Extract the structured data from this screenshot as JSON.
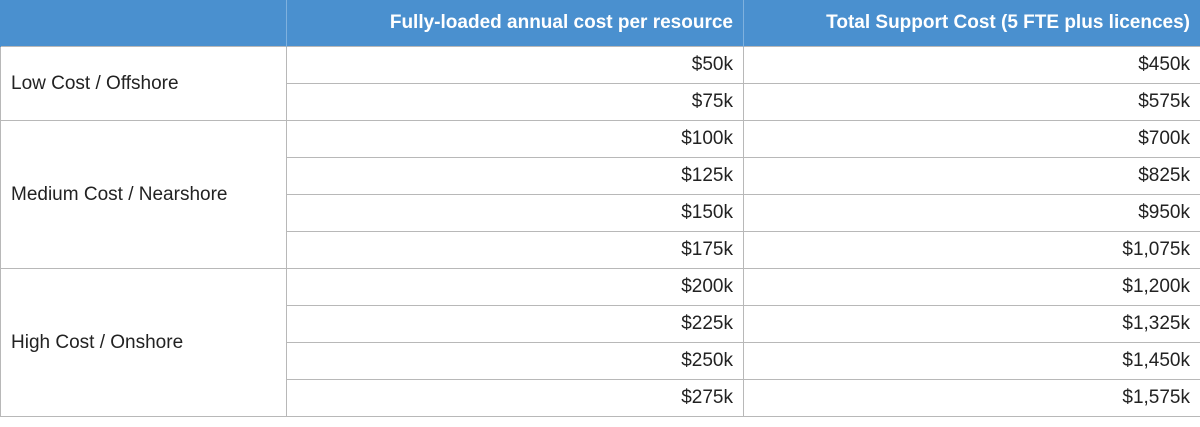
{
  "header": {
    "col1": "",
    "col2": "Fully-loaded annual cost per resource",
    "col3": "Total Support Cost (5 FTE plus licences)"
  },
  "groups": [
    {
      "label": "Low Cost / Offshore",
      "rows": [
        {
          "cost": "$50k",
          "total": "$450k"
        },
        {
          "cost": "$75k",
          "total": "$575k"
        }
      ]
    },
    {
      "label": "Medium Cost / Nearshore",
      "rows": [
        {
          "cost": "$100k",
          "total": "$700k"
        },
        {
          "cost": "$125k",
          "total": "$825k"
        },
        {
          "cost": "$150k",
          "total": "$950k"
        },
        {
          "cost": "$175k",
          "total": "$1,075k"
        }
      ]
    },
    {
      "label": "High Cost / Onshore",
      "rows": [
        {
          "cost": "$200k",
          "total": "$1,200k"
        },
        {
          "cost": "$225k",
          "total": "$1,325k"
        },
        {
          "cost": "$250k",
          "total": "$1,450k"
        },
        {
          "cost": "$275k",
          "total": "$1,575k"
        }
      ]
    }
  ],
  "colors": {
    "header_bg": "#4a90cf",
    "header_text": "#ffffff",
    "grid": "#b8b8b8"
  }
}
